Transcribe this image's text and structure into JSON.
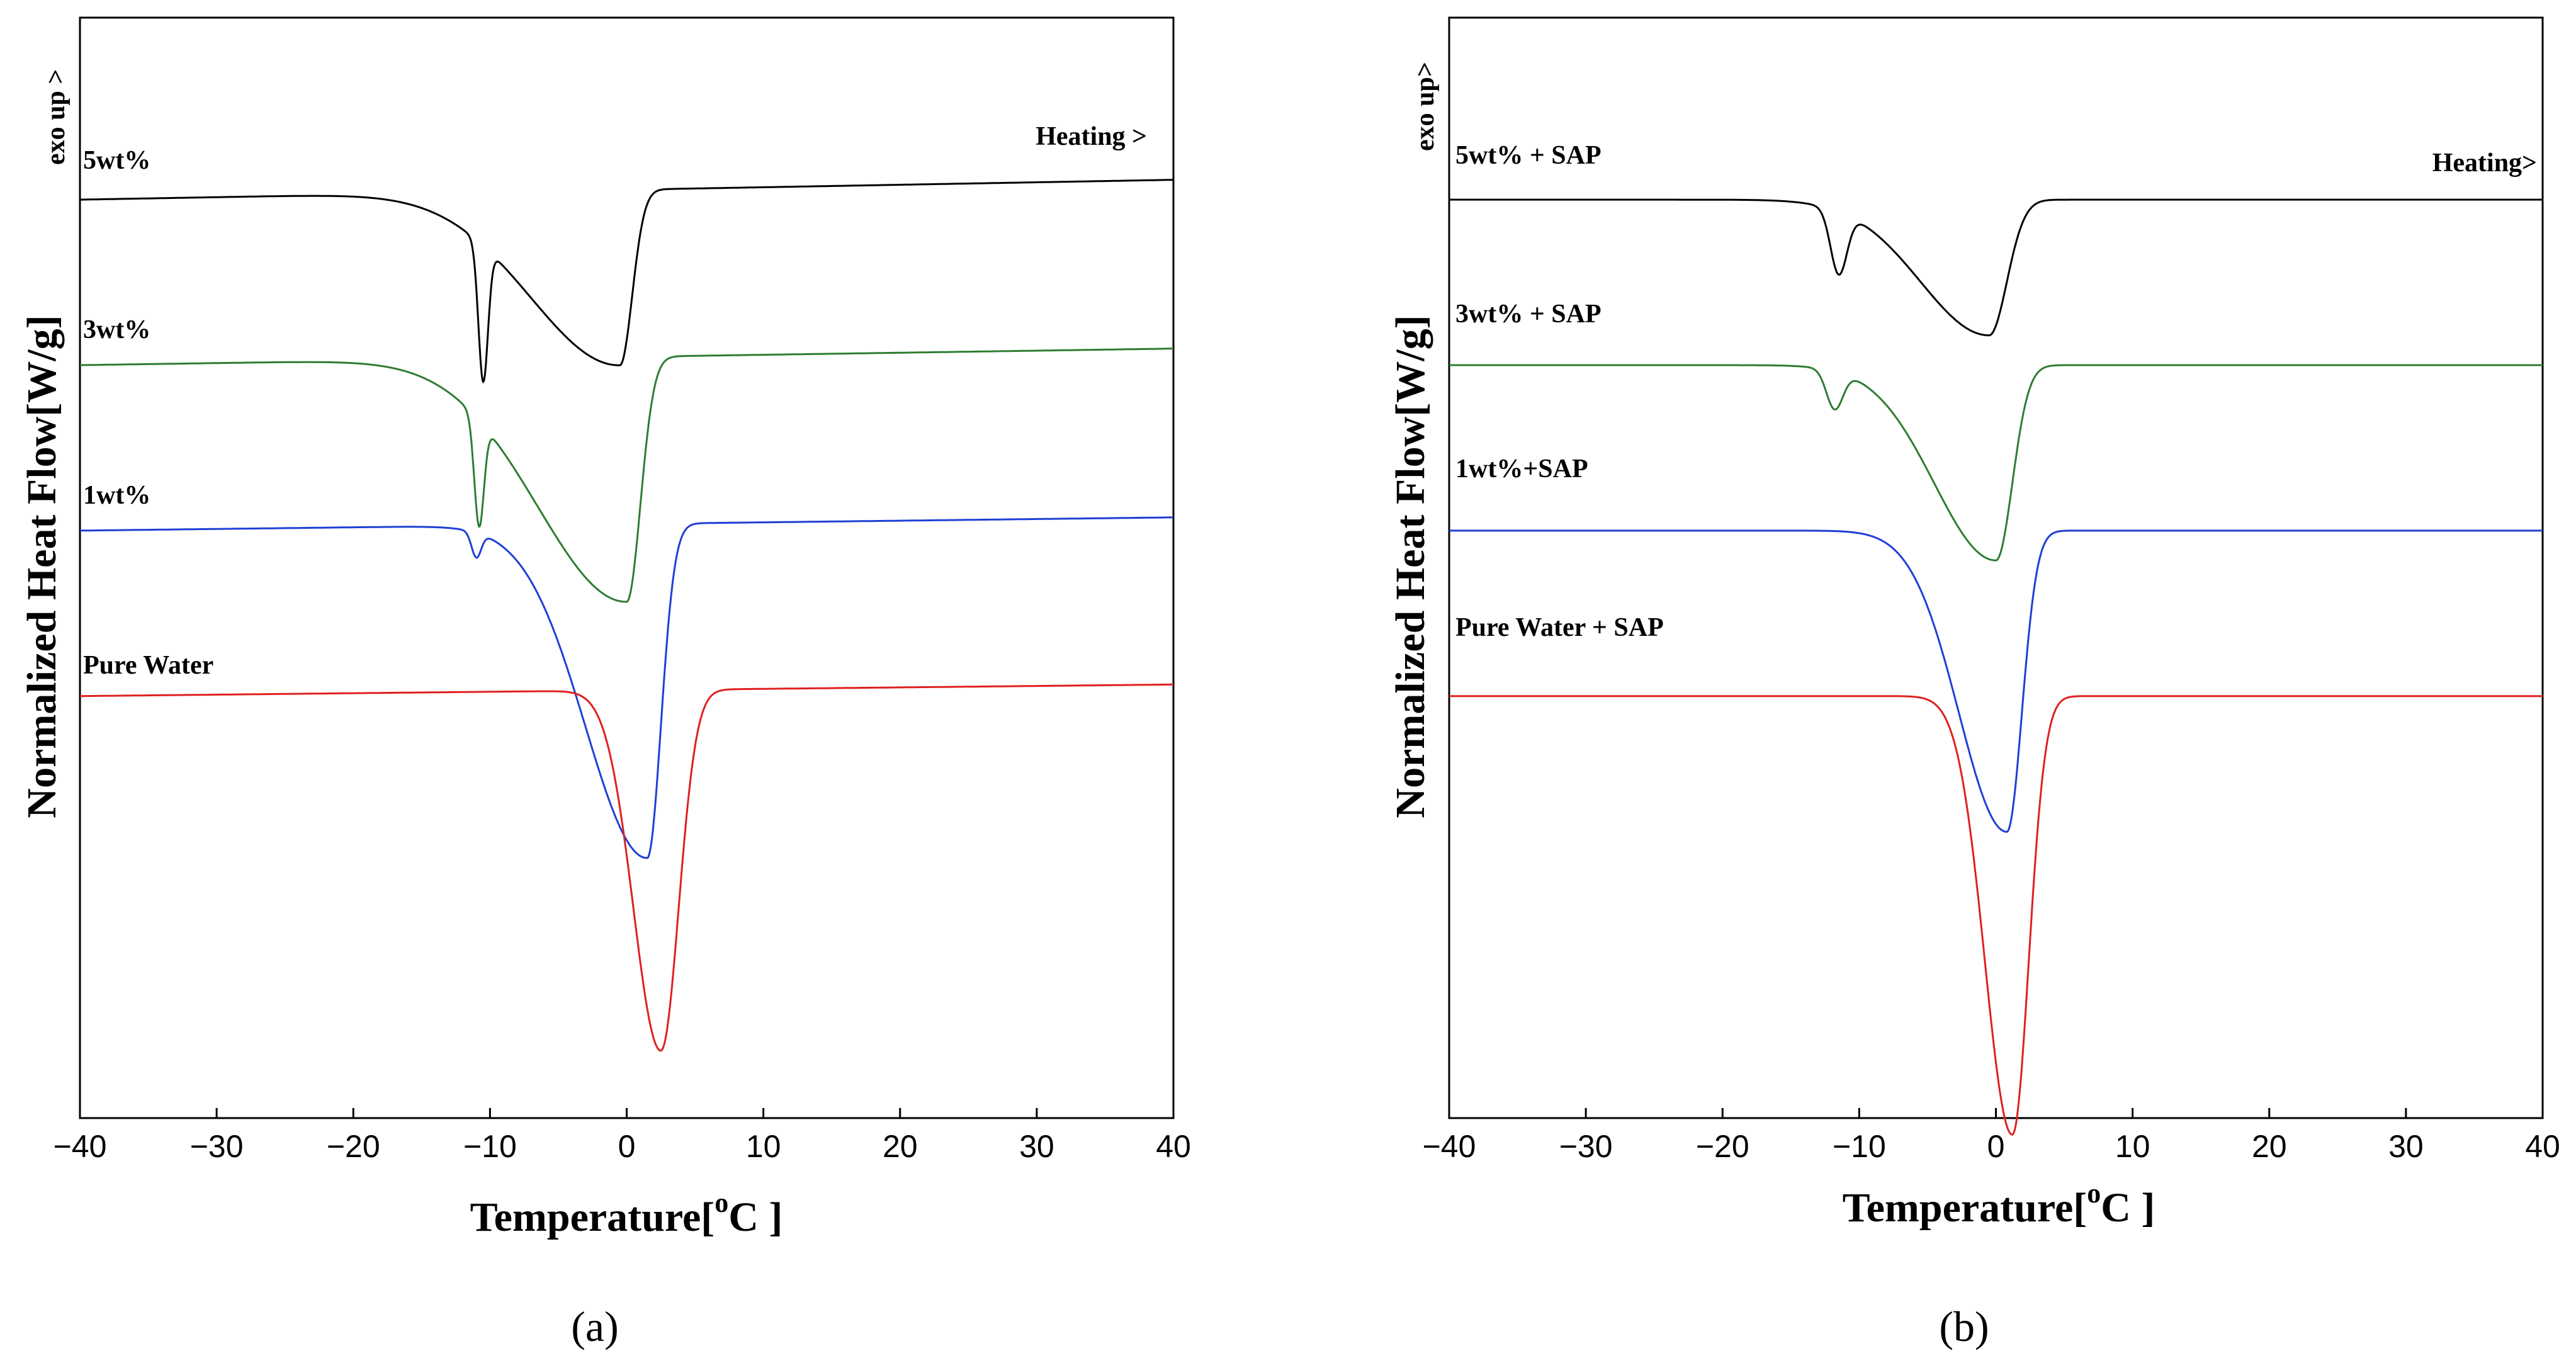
{
  "chart_data": [
    {
      "type": "line",
      "panel_label": "(a)",
      "xlabel": "Temperature[°C ]",
      "xlabel_main": "Temperature[",
      "xlabel_unit": "C ]",
      "xlabel_degree": "o",
      "ylabel": "Normalized Heat Flow[W/g]",
      "xlim": [
        -40,
        40
      ],
      "xticks": [
        -40,
        -30,
        -20,
        -10,
        0,
        10,
        20,
        30,
        40
      ],
      "xtick_labels": [
        "−40",
        "−30",
        "−20",
        "−10",
        "0",
        "10",
        "20",
        "30",
        "40"
      ],
      "annotations": {
        "exo": "exo up >",
        "heating": "Heating >"
      },
      "series": [
        {
          "name": "5wt%",
          "color": "#000000",
          "baseline": 0.0,
          "drift": 0.12,
          "peaks": [
            {
              "x": -10.5,
              "depth": 0.82,
              "width": 0.35
            },
            {
              "x": -0.5,
              "depth": 1.06,
              "width": 0.9,
              "tail_left": 6.5
            }
          ]
        },
        {
          "name": "3wt%",
          "color": "#2e7d32",
          "baseline": -1.0,
          "drift": 0.1,
          "peaks": [
            {
              "x": -10.8,
              "depth": 0.64,
              "width": 0.35
            },
            {
              "x": 0.0,
              "depth": 1.48,
              "width": 1.0,
              "tail_left": 6.5
            }
          ]
        },
        {
          "name": "1wt%",
          "color": "#1f3fd6",
          "baseline": -2.0,
          "drift": 0.08,
          "peaks": [
            {
              "x": -11.0,
              "depth": 0.15,
              "width": 0.35
            },
            {
              "x": 1.5,
              "depth": 2.02,
              "width": 1.0,
              "tail_left": 4.5
            }
          ]
        },
        {
          "name": "Pure Water",
          "color": "#e02020",
          "baseline": -3.0,
          "drift": 0.07,
          "peaks": [
            {
              "x": 2.5,
              "depth": 2.18,
              "width": 1.3,
              "tail_left": 2.0
            }
          ]
        }
      ]
    },
    {
      "type": "line",
      "panel_label": "(b)",
      "xlabel": "Temperature[°C ]",
      "xlabel_main": "Temperature[",
      "xlabel_unit": "C ]",
      "xlabel_degree": "o",
      "ylabel": "Normalized Heat Flow[W/g]",
      "xlim": [
        -40,
        40
      ],
      "xticks": [
        -40,
        -30,
        -20,
        -10,
        0,
        10,
        20,
        30,
        40
      ],
      "xtick_labels": [
        "−40",
        "−30",
        "−20",
        "−10",
        "0",
        "10",
        "20",
        "30",
        "40"
      ],
      "annotations": {
        "exo": "exo up>",
        "heating": "Heating>"
      },
      "series": [
        {
          "name": "5wt% + SAP",
          "color": "#000000",
          "baseline": 0.0,
          "drift": 0.0,
          "peaks": [
            {
              "x": -11.5,
              "depth": 0.38,
              "width": 0.6
            },
            {
              "x": -0.5,
              "depth": 0.82,
              "width": 1.3,
              "tail_left": 5.0
            }
          ]
        },
        {
          "name": "3wt% + SAP",
          "color": "#2e7d32",
          "baseline": -1.0,
          "drift": 0.0,
          "peaks": [
            {
              "x": -11.8,
              "depth": 0.23,
              "width": 0.6
            },
            {
              "x": 0.0,
              "depth": 1.18,
              "width": 1.2,
              "tail_left": 4.5
            }
          ]
        },
        {
          "name": "1wt%+SAP",
          "color": "#1f3fd6",
          "baseline": -2.0,
          "drift": 0.0,
          "peaks": [
            {
              "x": 0.8,
              "depth": 1.82,
              "width": 1.1,
              "tail_left": 3.5
            }
          ]
        },
        {
          "name": "Pure Water + SAP",
          "color": "#e02020",
          "baseline": -3.0,
          "drift": 0.0,
          "peaks": [
            {
              "x": 1.2,
              "depth": 2.65,
              "width": 1.2,
              "tail_left": 2.0
            }
          ]
        }
      ]
    }
  ]
}
